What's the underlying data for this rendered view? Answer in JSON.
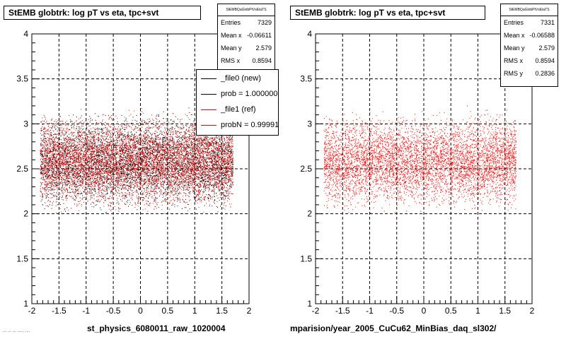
{
  "chart_data": [
    {
      "type": "scatter",
      "title": "StEMB globtrk: log pT vs eta, tpc+svt",
      "xlabel": "st_physics_6080011_raw_1020004",
      "ylabel": "",
      "xlim": [
        -2,
        2
      ],
      "ylim": [
        1,
        4
      ],
      "xticks": [
        "-2",
        "-1.5",
        "-1",
        "-0.5",
        "0",
        "0.5",
        "1",
        "1.5",
        "2"
      ],
      "yticks": [
        "1",
        "1.5",
        "2",
        "2.5",
        "3",
        "3.5",
        "4"
      ],
      "grid": true,
      "series": [
        {
          "name": "_file0 (new)",
          "color": "#000000",
          "x_range": [
            -1.85,
            1.7
          ],
          "y_range": [
            2.0,
            3.3
          ],
          "x_mean": -0.06611,
          "y_mean": 2.579,
          "x_rms": 0.8594,
          "entries": 7329
        },
        {
          "name": "_file1 (ref)",
          "color": "#ff0000",
          "x_range": [
            -1.85,
            1.7
          ],
          "y_range": [
            2.0,
            3.3
          ],
          "x_mean": -0.06588,
          "y_mean": 2.579,
          "x_rms": 0.8594,
          "entries": 7331
        }
      ],
      "stats": {
        "header": "StEMBQaGlobPtVsEtaTS",
        "rows": [
          {
            "key": "Entries",
            "value": "7329"
          },
          {
            "key": "Mean x",
            "value": "-0.06611"
          },
          {
            "key": "Mean y",
            "value": "2.579"
          },
          {
            "key": "RMS x",
            "value": "0.8594"
          }
        ]
      },
      "legend": {
        "placement": "top-right",
        "items": [
          {
            "label": "_file0 (new)",
            "color": "#000000"
          },
          {
            "label": "prob = 1.000000",
            "color": "#000000"
          },
          {
            "label": "_file1 (ref)",
            "color": "#ff0000"
          },
          {
            "label": "probN = 0.999911",
            "color": "#ff0000"
          }
        ]
      }
    },
    {
      "type": "scatter",
      "title": "StEMB globtrk: log pT vs eta, tpc+svt",
      "xlabel": "mparision/year_2005_CuCu62_MinBias_daq_sl302/",
      "ylabel": "",
      "xlim": [
        -2,
        2
      ],
      "ylim": [
        1,
        4
      ],
      "xticks": [
        "-2",
        "-1.5",
        "-1",
        "-0.5",
        "0",
        "0.5",
        "1",
        "1.5",
        "2"
      ],
      "yticks": [
        "1",
        "1.5",
        "2",
        "2.5",
        "3",
        "3.5",
        "4"
      ],
      "grid": true,
      "series": [
        {
          "name": "",
          "color": "#ff0000",
          "x_range": [
            -1.85,
            1.7
          ],
          "y_range": [
            2.0,
            3.3
          ],
          "x_mean": -0.06588,
          "y_mean": 2.579,
          "x_rms": 0.8594,
          "y_rms": 0.2836,
          "entries": 7331
        }
      ],
      "stats": {
        "header": "StEMBQaGlobPtVsEtaTS",
        "rows": [
          {
            "key": "Entries",
            "value": "7331"
          },
          {
            "key": "Mean x",
            "value": "-0.06588"
          },
          {
            "key": "Mean y",
            "value": "2.579"
          },
          {
            "key": "RMS x",
            "value": "0.8594"
          },
          {
            "key": "RMS y",
            "value": "0.2836"
          }
        ]
      }
    }
  ],
  "footnote": "... ... ... ...... ....",
  "colors": {
    "new": "#000000",
    "ref": "#ff0000",
    "grid": "#000000",
    "frame": "#000000"
  }
}
